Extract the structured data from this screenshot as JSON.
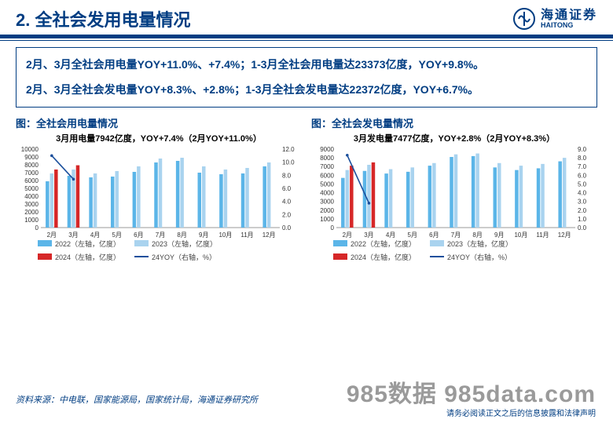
{
  "header": {
    "title": "2. 全社会发用电量情况"
  },
  "brand": {
    "cn": "海通证券",
    "sub": "HAITONG"
  },
  "summary": {
    "p1": "2月、3月全社会用电量YOY+11.0%、+7.4%；1-3月全社会用电量达23373亿度，YOY+9.8%。",
    "p2": "2月、3月全社会发电量YOY+8.3%、+2.8%；1-3月全社会发电量达22372亿度，YOY+6.7%。"
  },
  "left_chart": {
    "type": "bar+line",
    "head": "图：全社会用电量情况",
    "sub": "3月用电量7942亿度，YOY+7.4%（2月YOY+11.0%）",
    "categories": [
      "2月",
      "3月",
      "4月",
      "5月",
      "6月",
      "7月",
      "8月",
      "9月",
      "10月",
      "11月",
      "12月"
    ],
    "s2022": [
      5900,
      6600,
      6400,
      6500,
      7100,
      8300,
      8500,
      7000,
      6800,
      6900,
      7800
    ],
    "s2023": [
      6900,
      7400,
      6900,
      7200,
      7800,
      8800,
      8900,
      7800,
      7400,
      7600,
      8300
    ],
    "s2024": [
      7400,
      7942,
      null,
      null,
      null,
      null,
      null,
      null,
      null,
      null,
      null
    ],
    "yoy": [
      11.0,
      7.4
    ],
    "y_left": {
      "min": 0,
      "max": 10000,
      "step": 1000
    },
    "y_right": {
      "min": 0.0,
      "max": 12.0,
      "step": 2.0
    },
    "colors": {
      "s2022": "#5bb5e8",
      "s2023": "#a9d3ef",
      "s2024": "#d62728",
      "yoy": "#1b4f9c",
      "grid": "#dcdcdc",
      "axis": "#333333",
      "bg": "#ffffff"
    },
    "bar_width": 4.5,
    "legend": {
      "a": "2022（左轴，亿度）",
      "b": "2023（左轴，亿度）",
      "c": "2024（左轴，亿度）",
      "d": "24YOY（右轴，%）"
    }
  },
  "right_chart": {
    "type": "bar+line",
    "head": "图：全社会发电量情况",
    "sub": "3月发电量7477亿度，YOY+2.8%（2月YOY+8.3%）",
    "categories": [
      "2月",
      "3月",
      "4月",
      "5月",
      "6月",
      "7月",
      "8月",
      "9月",
      "10月",
      "11月",
      "12月"
    ],
    "s2022": [
      5700,
      6500,
      6200,
      6400,
      7100,
      8100,
      8200,
      6900,
      6600,
      6800,
      7600
    ],
    "s2023": [
      6600,
      7200,
      6700,
      6900,
      7400,
      8400,
      8500,
      7400,
      7100,
      7300,
      8000
    ],
    "s2024": [
      7100,
      7477,
      null,
      null,
      null,
      null,
      null,
      null,
      null,
      null,
      null
    ],
    "yoy": [
      8.3,
      2.8
    ],
    "y_left": {
      "min": 0,
      "max": 9000,
      "step": 1000
    },
    "y_right": {
      "min": 0.0,
      "max": 9.0,
      "step": 1.0
    },
    "colors": {
      "s2022": "#5bb5e8",
      "s2023": "#a9d3ef",
      "s2024": "#d62728",
      "yoy": "#1b4f9c",
      "grid": "#dcdcdc",
      "axis": "#333333",
      "bg": "#ffffff"
    },
    "bar_width": 4.5,
    "legend": {
      "a": "2022（左轴，亿度）",
      "b": "2023（左轴，亿度）",
      "c": "2024（左轴，亿度）",
      "d": "24YOY（右轴，%）"
    }
  },
  "source": "资料来源：中电联，国家能源局，国家统计局，海通证券研究所",
  "watermark": "985数据 985data.com",
  "disclaimer": "请务必阅读正文之后的信息披露和法律声明"
}
